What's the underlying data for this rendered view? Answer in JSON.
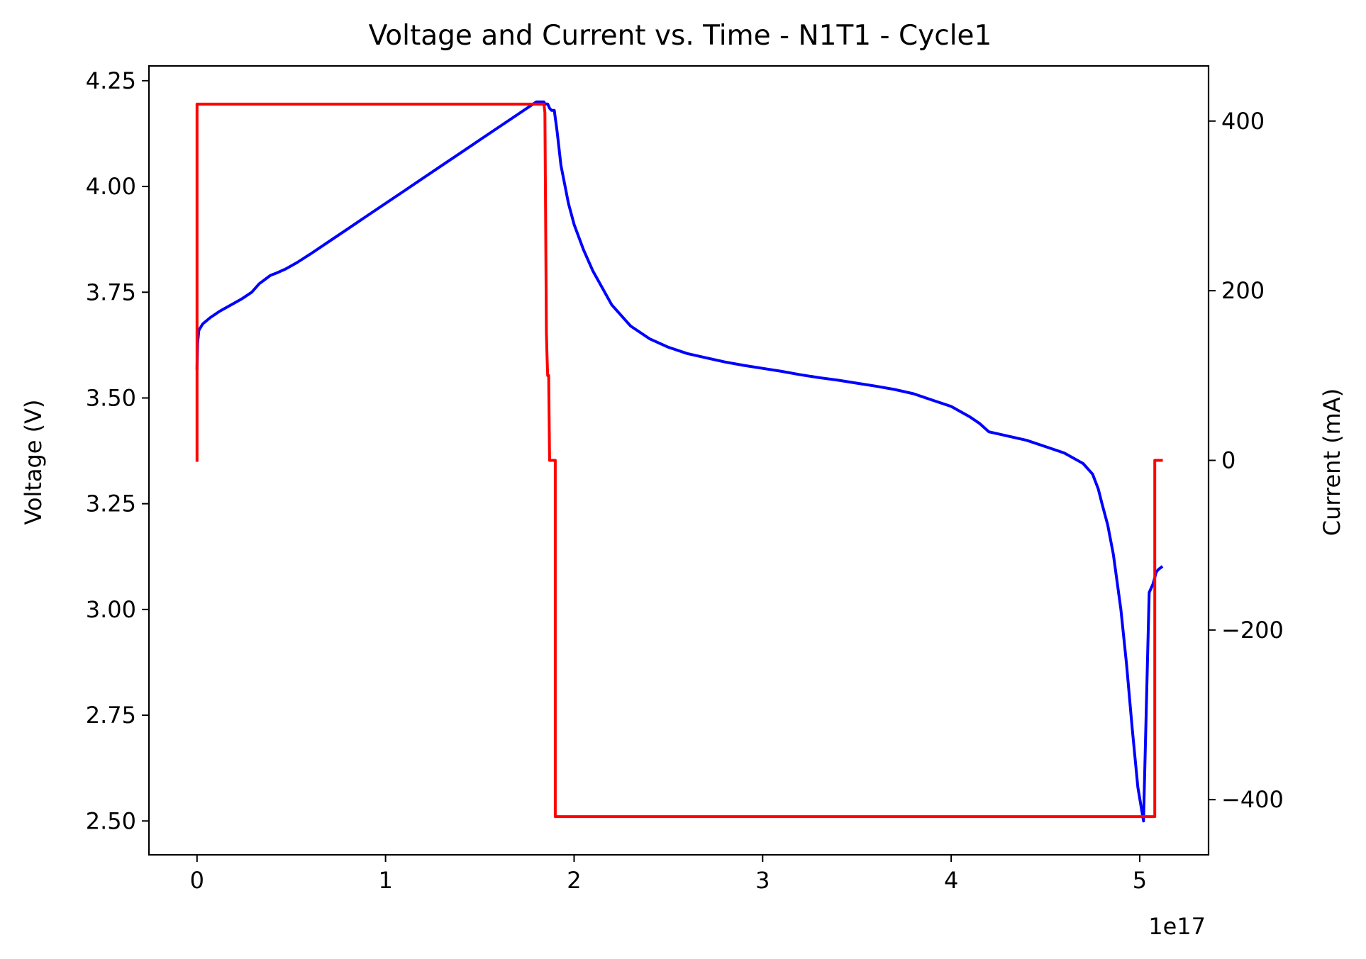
{
  "chart_data": {
    "type": "line",
    "title": "Voltage and Current vs. Time - N1T1 - Cycle1",
    "xlabel": "",
    "x_offset_label": "1e17",
    "x_ticks": [
      0,
      1,
      2,
      3,
      4,
      5
    ],
    "x_tick_labels": [
      "0",
      "1",
      "2",
      "3",
      "4",
      "5"
    ],
    "xlim": [
      -0.255,
      5.365
    ],
    "left_axis": {
      "label": "Voltage (V)",
      "ylim": [
        2.42,
        4.285
      ],
      "ticks": [
        2.5,
        2.75,
        3.0,
        3.25,
        3.5,
        3.75,
        4.0,
        4.25
      ],
      "tick_labels": [
        "2.50",
        "2.75",
        "3.00",
        "3.25",
        "3.50",
        "3.75",
        "4.00",
        "4.25"
      ]
    },
    "right_axis": {
      "label": "Current (mA)",
      "ylim": [
        -465,
        465
      ],
      "ticks": [
        -400,
        -200,
        0,
        200,
        400
      ],
      "tick_labels": [
        "−400",
        "−200",
        "0",
        "200",
        "400"
      ]
    },
    "grid": false,
    "series": [
      {
        "axis": "left",
        "color": "#0000ff",
        "x": [
          0.0,
          0.003,
          0.01,
          0.03,
          0.07,
          0.12,
          0.18,
          0.24,
          0.29,
          0.33,
          0.36,
          0.39,
          0.42,
          0.47,
          0.53,
          0.6,
          0.7,
          0.8,
          0.9,
          1.0,
          1.1,
          1.2,
          1.3,
          1.4,
          1.5,
          1.6,
          1.7,
          1.8,
          1.84,
          1.845,
          1.86,
          1.87,
          1.88,
          1.888,
          1.89,
          1.895,
          1.91,
          1.93,
          1.97,
          2.0,
          2.05,
          2.1,
          2.2,
          2.3,
          2.4,
          2.5,
          2.6,
          2.7,
          2.8,
          2.9,
          3.0,
          3.1,
          3.2,
          3.3,
          3.4,
          3.5,
          3.6,
          3.7,
          3.8,
          3.9,
          4.0,
          4.1,
          4.15,
          4.2,
          4.25,
          4.3,
          4.35,
          4.4,
          4.5,
          4.6,
          4.7,
          4.75,
          4.78,
          4.8,
          4.83,
          4.86,
          4.9,
          4.93,
          4.96,
          4.99,
          5.02,
          5.05,
          5.07,
          5.08,
          5.085,
          5.09,
          5.1,
          5.115
        ],
        "y": [
          3.57,
          3.63,
          3.66,
          3.675,
          3.69,
          3.705,
          3.72,
          3.735,
          3.75,
          3.77,
          3.78,
          3.79,
          3.795,
          3.805,
          3.82,
          3.84,
          3.87,
          3.9,
          3.93,
          3.96,
          3.99,
          4.02,
          4.05,
          4.08,
          4.11,
          4.14,
          4.17,
          4.2,
          4.2,
          4.195,
          4.195,
          4.185,
          4.18,
          4.18,
          4.18,
          4.18,
          4.13,
          4.05,
          3.96,
          3.91,
          3.85,
          3.8,
          3.72,
          3.67,
          3.64,
          3.62,
          3.605,
          3.595,
          3.585,
          3.577,
          3.57,
          3.563,
          3.555,
          3.548,
          3.542,
          3.535,
          3.528,
          3.52,
          3.51,
          3.495,
          3.48,
          3.455,
          3.44,
          3.42,
          3.415,
          3.41,
          3.405,
          3.4,
          3.385,
          3.37,
          3.345,
          3.32,
          3.285,
          3.25,
          3.2,
          3.13,
          3.0,
          2.87,
          2.72,
          2.58,
          2.5,
          3.04,
          3.06,
          3.075,
          3.085,
          3.09,
          3.095,
          3.1
        ]
      },
      {
        "axis": "right",
        "color": "#ff0000",
        "x": [
          0.0,
          0.0,
          0.0,
          1.84,
          1.845,
          1.85,
          1.853,
          1.857,
          1.86,
          1.865,
          1.87,
          1.87,
          1.9,
          1.9,
          5.08,
          5.08,
          5.115
        ],
        "y": [
          0,
          420,
          420,
          420,
          410,
          250,
          150,
          120,
          100,
          100,
          0,
          0,
          0,
          -420,
          -420,
          0,
          0
        ]
      }
    ]
  }
}
